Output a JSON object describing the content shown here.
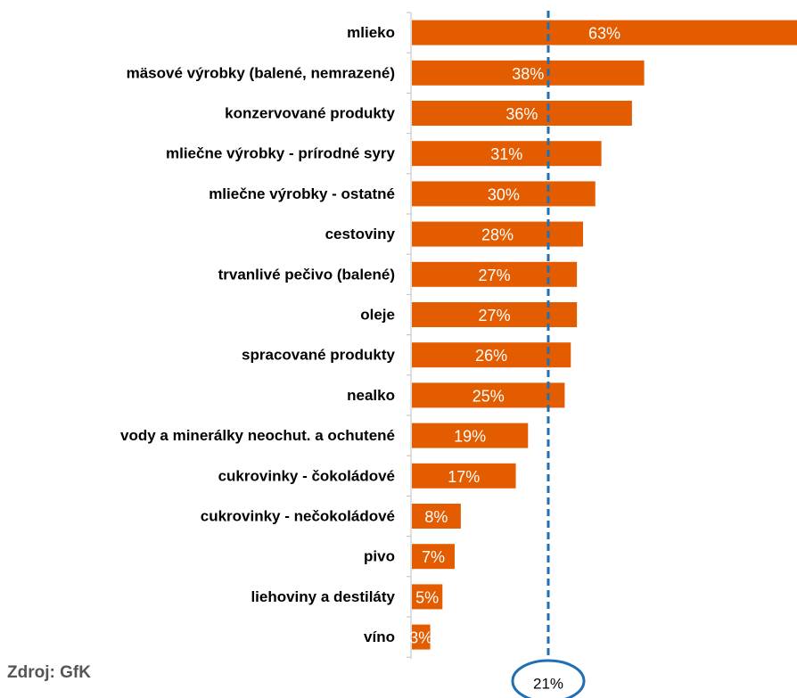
{
  "source": "Zdroj: GfK",
  "colors": {
    "bar": "#E35C00",
    "reference_line": "#1F6FB5",
    "value_text": "#FFFFFF",
    "axis": "#BFBFBF"
  },
  "chart_data": {
    "type": "bar",
    "orientation": "horizontal",
    "title": "",
    "xlabel": "",
    "ylabel": "",
    "xlim": [
      0,
      63
    ],
    "categories": [
      "mlieko",
      "mäsové výrobky (balené, nemrazené)",
      "konzervované produkty",
      "mliečne výrobky - prírodné syry",
      "mliečne výrobky - ostatné",
      "cestoviny",
      "trvanlivé pečivo (balené)",
      "oleje",
      "spracované produkty",
      "nealko",
      "vody a minerálky neochut. a ochutené",
      "cukrovinky - čokoládové",
      "cukrovinky - nečokoládové",
      "pivo",
      "liehoviny a destiláty",
      "víno"
    ],
    "values": [
      63,
      38,
      36,
      31,
      30,
      28,
      27,
      27,
      26,
      25,
      19,
      17,
      8,
      7,
      5,
      3
    ],
    "value_labels": [
      "63%",
      "38%",
      "36%",
      "31%",
      "30%",
      "28%",
      "27%",
      "27%",
      "26%",
      "25%",
      "19%",
      "17%",
      "8%",
      "7%",
      "5%",
      "3%"
    ],
    "reference_line": {
      "value": 21,
      "label": "21%",
      "style": "dashed"
    },
    "grid": false,
    "legend": "none"
  }
}
